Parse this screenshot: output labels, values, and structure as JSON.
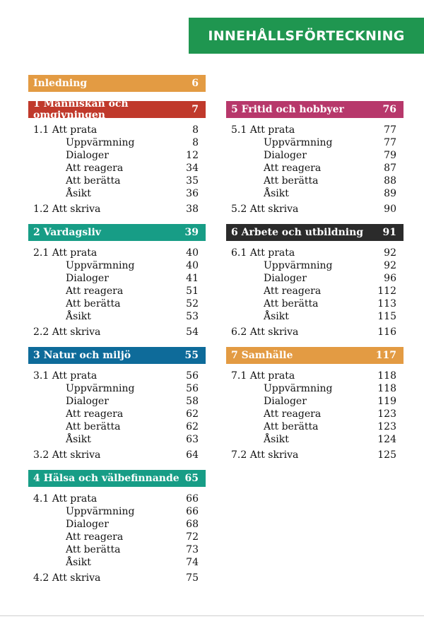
{
  "title": "INNEHÅLLSFÖRTECKNING",
  "colors": {
    "title_bg": "#1f9650",
    "intro": "#e39b43",
    "ch1": "#c0392b",
    "ch2": "#179d86",
    "ch3": "#0e6b9a",
    "ch4": "#179d86",
    "ch5": "#b7386b",
    "ch6": "#2b2b2b",
    "ch7": "#e39b43"
  },
  "intro": {
    "label": "Inledning",
    "page": "6"
  },
  "chapters": [
    {
      "title": "1 Människan och omgivningen",
      "page": "7",
      "rows": [
        {
          "label": "1.1 Att prata",
          "page": "8"
        },
        {
          "label": "Uppvärmning",
          "page": "8"
        },
        {
          "label": "Dialoger",
          "page": "12"
        },
        {
          "label": "Att reagera",
          "page": "34"
        },
        {
          "label": "Att berätta",
          "page": "35"
        },
        {
          "label": "Åsikt",
          "page": "36"
        },
        {
          "label": "1.2 Att skriva",
          "page": "38"
        }
      ]
    },
    {
      "title": "2 Vardagsliv",
      "page": "39",
      "rows": [
        {
          "label": "2.1 Att prata",
          "page": "40"
        },
        {
          "label": "Uppvärmning",
          "page": "40"
        },
        {
          "label": "Dialoger",
          "page": "41"
        },
        {
          "label": "Att reagera",
          "page": "51"
        },
        {
          "label": "Att berätta",
          "page": "52"
        },
        {
          "label": "Åsikt",
          "page": "53"
        },
        {
          "label": "2.2 Att skriva",
          "page": "54"
        }
      ]
    },
    {
      "title": "3 Natur och miljö",
      "page": "55",
      "rows": [
        {
          "label": "3.1 Att prata",
          "page": "56"
        },
        {
          "label": "Uppvärmning",
          "page": "56"
        },
        {
          "label": "Dialoger",
          "page": "58"
        },
        {
          "label": "Att reagera",
          "page": "62"
        },
        {
          "label": "Att berätta",
          "page": "62"
        },
        {
          "label": "Åsikt",
          "page": "63"
        },
        {
          "label": "3.2 Att skriva",
          "page": "64"
        }
      ]
    },
    {
      "title": "4 Hälsa och välbefinnande",
      "page": "65",
      "rows": [
        {
          "label": "4.1 Att prata",
          "page": "66"
        },
        {
          "label": "Uppvärmning",
          "page": "66"
        },
        {
          "label": "Dialoger",
          "page": "68"
        },
        {
          "label": "Att reagera",
          "page": "72"
        },
        {
          "label": "Att berätta",
          "page": "73"
        },
        {
          "label": "Åsikt",
          "page": "74"
        },
        {
          "label": "4.2 Att skriva",
          "page": "75"
        }
      ]
    },
    {
      "title": "5 Fritid och hobbyer",
      "page": "76",
      "rows": [
        {
          "label": "5.1 Att prata",
          "page": "77"
        },
        {
          "label": "Uppvärmning",
          "page": "77"
        },
        {
          "label": "Dialoger",
          "page": "79"
        },
        {
          "label": "Att reagera",
          "page": "87"
        },
        {
          "label": "Att berätta",
          "page": "88"
        },
        {
          "label": "Åsikt",
          "page": "89"
        },
        {
          "label": "5.2 Att skriva",
          "page": "90"
        }
      ]
    },
    {
      "title": "6 Arbete och utbildning",
      "page": "91",
      "rows": [
        {
          "label": "6.1 Att prata",
          "page": "92"
        },
        {
          "label": "Uppvärmning",
          "page": "92"
        },
        {
          "label": "Dialoger",
          "page": "96"
        },
        {
          "label": "Att reagera",
          "page": "112"
        },
        {
          "label": "Att berätta",
          "page": "113"
        },
        {
          "label": "Åsikt",
          "page": "115"
        },
        {
          "label": "6.2 Att skriva",
          "page": "116"
        }
      ]
    },
    {
      "title": "7 Samhälle",
      "page": "117",
      "rows": [
        {
          "label": "7.1 Att prata",
          "page": "118"
        },
        {
          "label": "Uppvärmning",
          "page": "118"
        },
        {
          "label": "Dialoger",
          "page": "119"
        },
        {
          "label": "Att reagera",
          "page": "123"
        },
        {
          "label": "Att berätta",
          "page": "123"
        },
        {
          "label": "Åsikt",
          "page": "124"
        },
        {
          "label": "7.2 Att skriva",
          "page": "125"
        }
      ]
    }
  ]
}
